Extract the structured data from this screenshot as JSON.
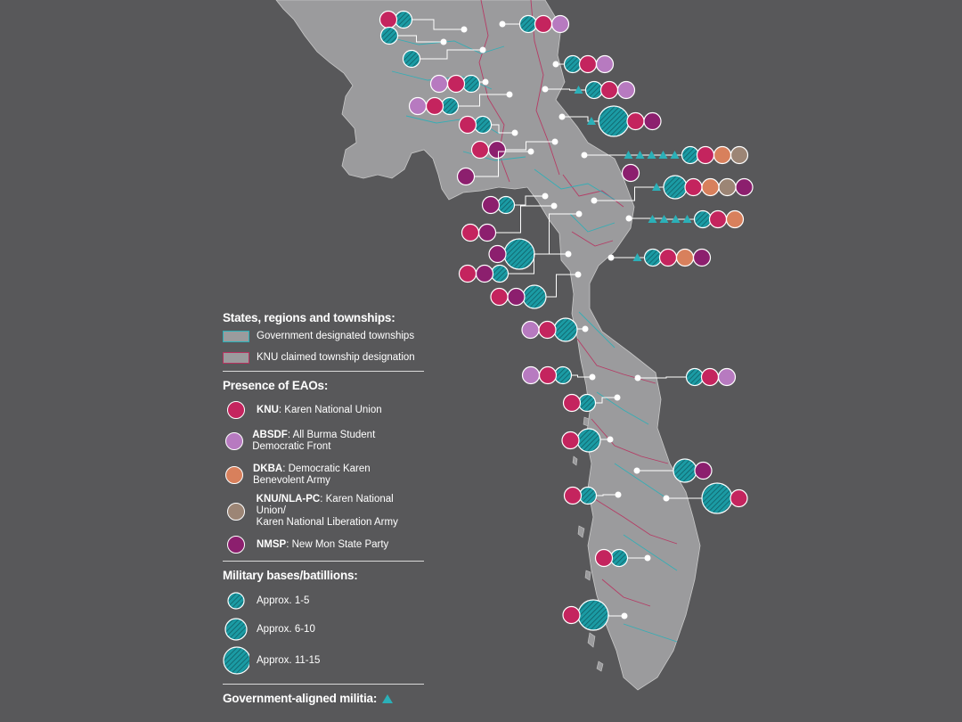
{
  "colors": {
    "background": "#58585a",
    "land": "#9b9b9d",
    "gov_border": "#2bb0b8",
    "knu_border": "#b8325f",
    "knu": "#c4245e",
    "abs": "#b77ac0",
    "dkb": "#d8805c",
    "nla": "#9c8575",
    "nms": "#8c1f6e",
    "mil": "#1b9ba4",
    "militia": "#2bb0b8"
  },
  "legend": {
    "states_title": "States, regions and townships:",
    "gov_townships": "Government designated townships",
    "knu_townships": "KNU claimed township designation",
    "eao_title": "Presence of EAOs:",
    "eaos": [
      {
        "abbr": "KNU",
        "name": ": Karen National Union",
        "color": "#c4245e"
      },
      {
        "abbr": "ABSDF",
        "name": ": All Burma Student Democratic Front",
        "color": "#b77ac0"
      },
      {
        "abbr": "DKBA",
        "name": ": Democratic Karen Benevolent Army",
        "color": "#d8805c"
      },
      {
        "abbr": "KNU/NLA-PC",
        "name": ": Karen National Union/",
        "name2": "Karen National Liberation Army",
        "color": "#9c8575"
      },
      {
        "abbr": "NMSP",
        "name": ": New Mon State Party",
        "color": "#8c1f6e"
      }
    ],
    "military_title": "Military bases/batillions:",
    "military": [
      {
        "label": "Approx. 1-5",
        "level": 1
      },
      {
        "label": "Approx. 6-10",
        "level": 2
      },
      {
        "label": "Approx. 11-15",
        "level": 3
      }
    ],
    "militia_title": "Government-aligned militia:"
  },
  "townships": [
    {
      "dot": [
        521,
        33
      ],
      "mil": 1,
      "eao": [
        "knu"
      ],
      "side": "L",
      "lbl": [
        453,
        22
      ]
    },
    {
      "dot": [
        564,
        27
      ],
      "mil": 1,
      "eao": [
        "knu",
        "abs"
      ],
      "side": "R",
      "lbl": [
        593,
        27
      ]
    },
    {
      "dot": [
        498,
        47
      ],
      "mil": 1,
      "eao": [],
      "side": "L",
      "lbl": [
        437,
        40
      ]
    },
    {
      "dot": [
        542,
        56
      ],
      "mil": 1,
      "eao": [],
      "side": "L",
      "lbl": [
        462,
        66
      ]
    },
    {
      "dot": [
        624,
        72
      ],
      "mil": 1,
      "eao": [
        "knu",
        "abs"
      ],
      "side": "R",
      "lbl": [
        643,
        72
      ]
    },
    {
      "dot": [
        545,
        92
      ],
      "mil": 1,
      "eao": [
        "abs",
        "knu"
      ],
      "side": "L",
      "lbl": [
        529,
        94
      ]
    },
    {
      "dot": [
        612,
        100
      ],
      "mil": 1,
      "eao": [
        "knu",
        "abs"
      ],
      "side": "R",
      "lbl": [
        667,
        101
      ],
      "militia": 1
    },
    {
      "dot": [
        572,
        106
      ],
      "mil": 1,
      "eao": [
        "abs",
        "knu"
      ],
      "side": "L",
      "lbl": [
        505,
        119
      ]
    },
    {
      "dot": [
        631,
        131
      ],
      "mil": 3,
      "eao": [
        "knu",
        "nms"
      ],
      "side": "R",
      "lbl": [
        689,
        136
      ],
      "militia": 1
    },
    {
      "dot": [
        578,
        149
      ],
      "mil": 1,
      "eao": [
        "knu"
      ],
      "side": "L",
      "lbl": [
        542,
        140
      ]
    },
    {
      "dot": [
        623,
        159
      ],
      "mil": 0,
      "eao": [
        "knu",
        "nms"
      ],
      "side": "L",
      "lbl": [
        558,
        168
      ]
    },
    {
      "dot": [
        656,
        174
      ],
      "mil": 1,
      "eao": [
        "knu",
        "dkb",
        "nla"
      ],
      "side": "R",
      "lbl": [
        775,
        174
      ],
      "militia": 5
    },
    {
      "dot": [
        596,
        170
      ],
      "mil": 0,
      "eao": [
        "nms"
      ],
      "side": "L",
      "lbl": [
        523,
        198
      ]
    },
    {
      "dot": [
        711,
        194
      ],
      "mil": 0,
      "eao": [
        "nms"
      ],
      "side": "R",
      "lbl": [
        708,
        194
      ]
    },
    {
      "dot": [
        667,
        225
      ],
      "mil": 2,
      "eao": [
        "knu",
        "dkb",
        "nla",
        "nms"
      ],
      "side": "R",
      "lbl": [
        758,
        210
      ],
      "militia": 1
    },
    {
      "dot": [
        612,
        220
      ],
      "mil": 1,
      "eao": [
        "nms"
      ],
      "side": "L",
      "lbl": [
        568,
        230
      ]
    },
    {
      "dot": [
        706,
        245
      ],
      "mil": 1,
      "eao": [
        "knu",
        "dkb"
      ],
      "side": "R",
      "lbl": [
        789,
        246
      ],
      "militia": 4
    },
    {
      "dot": [
        622,
        231
      ],
      "mil": 0,
      "eao": [
        "knu",
        "nms"
      ],
      "side": "L",
      "lbl": [
        547,
        261
      ]
    },
    {
      "dot": [
        650,
        240
      ],
      "mil": 3,
      "eao": [
        "nms"
      ],
      "side": "L",
      "lbl": [
        583,
        285
      ]
    },
    {
      "dot": [
        686,
        289
      ],
      "mil": 1,
      "eao": [
        "knu",
        "dkb",
        "nms"
      ],
      "side": "R",
      "lbl": [
        733,
        289
      ],
      "militia": 1
    },
    {
      "dot": [
        638,
        285
      ],
      "mil": 1,
      "eao": [
        "knu",
        "nms"
      ],
      "side": "L",
      "lbl": [
        561,
        307
      ]
    },
    {
      "dot": [
        649,
        308
      ],
      "mil": 2,
      "eao": [
        "knu",
        "nms"
      ],
      "side": "L",
      "lbl": [
        600,
        333
      ]
    },
    {
      "dot": [
        657,
        369
      ],
      "mil": 2,
      "eao": [
        "abs",
        "knu"
      ],
      "side": "L",
      "lbl": [
        635,
        370
      ]
    },
    {
      "dot": [
        716,
        424
      ],
      "mil": 1,
      "eao": [
        "knu",
        "abs"
      ],
      "side": "R",
      "lbl": [
        780,
        423
      ]
    },
    {
      "dot": [
        665,
        423
      ],
      "mil": 1,
      "eao": [
        "abs",
        "knu"
      ],
      "side": "L",
      "lbl": [
        632,
        421
      ]
    },
    {
      "dot": [
        693,
        446
      ],
      "mil": 1,
      "eao": [
        "knu"
      ],
      "side": "L",
      "lbl": [
        659,
        452
      ]
    },
    {
      "dot": [
        685,
        493
      ],
      "mil": 2,
      "eao": [
        "knu"
      ],
      "side": "L",
      "lbl": [
        661,
        494
      ]
    },
    {
      "dot": [
        715,
        528
      ],
      "mil": 2,
      "eao": [
        "nms"
      ],
      "side": "R",
      "lbl": [
        769,
        528
      ]
    },
    {
      "dot": [
        748,
        559
      ],
      "mil": 3,
      "eao": [
        "knu"
      ],
      "side": "R",
      "lbl": [
        805,
        559
      ]
    },
    {
      "dot": [
        694,
        555
      ],
      "mil": 1,
      "eao": [
        "knu"
      ],
      "side": "L",
      "lbl": [
        660,
        556
      ]
    },
    {
      "dot": [
        727,
        626
      ],
      "mil": 1,
      "eao": [
        "knu"
      ],
      "side": "L",
      "lbl": [
        695,
        626
      ]
    },
    {
      "dot": [
        701,
        691
      ],
      "mil": 3,
      "eao": [
        "knu"
      ],
      "side": "L",
      "lbl": [
        666,
        690
      ]
    }
  ]
}
